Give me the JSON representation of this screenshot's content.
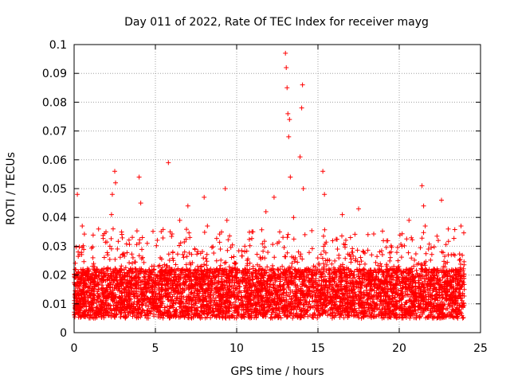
{
  "chart_data": {
    "type": "scatter",
    "title": "Day 011 of 2022, Rate Of TEC Index for receiver mayg",
    "xlabel": "GPS time / hours",
    "ylabel": "ROTI / TECUs",
    "xlim": [
      0,
      25
    ],
    "ylim": [
      0,
      0.1
    ],
    "x_ticks": [
      0,
      5,
      10,
      15,
      20,
      25
    ],
    "x_tick_labels": [
      "0",
      "5",
      "10",
      "15",
      "20",
      "25"
    ],
    "y_ticks": [
      0,
      0.01,
      0.02,
      0.03,
      0.04,
      0.05,
      0.06,
      0.07,
      0.08,
      0.09,
      0.1
    ],
    "y_tick_labels": [
      "0",
      "0.01",
      "0.02",
      "0.03",
      "0.04",
      "0.05",
      "0.06",
      "0.07",
      "0.08",
      "0.09",
      "0.1"
    ],
    "grid": true,
    "marker": "+",
    "series_color": "#ff0000",
    "series": [
      {
        "name": "ROTI",
        "x": [
          0.1,
          0.15,
          0.2,
          0.25,
          0.3,
          0.5,
          0.55,
          0.6,
          0.9,
          1.2,
          1.5,
          1.8,
          2.2,
          2.3,
          2.35,
          2.4,
          2.5,
          2.55,
          2.6,
          2.8,
          3.0,
          3.3,
          3.5,
          3.8,
          4.0,
          4.1,
          4.2,
          4.3,
          4.5,
          4.8,
          5.0,
          5.3,
          5.5,
          5.8,
          6.0,
          6.2,
          6.5,
          6.8,
          7.0,
          7.3,
          7.6,
          7.9,
          8.0,
          8.2,
          8.5,
          8.8,
          9.0,
          9.3,
          9.4,
          9.6,
          9.9,
          10.2,
          10.5,
          10.8,
          11.0,
          11.3,
          11.6,
          11.8,
          12.0,
          12.3,
          12.5,
          12.8,
          13.0,
          13.05,
          13.1,
          13.15,
          13.2,
          13.25,
          13.3,
          13.5,
          13.8,
          13.9,
          14.0,
          14.05,
          14.1,
          14.2,
          14.5,
          14.8,
          15.0,
          15.3,
          15.4,
          15.6,
          15.9,
          16.2,
          16.5,
          16.8,
          17.0,
          17.3,
          17.5,
          17.8,
          18.0,
          18.3,
          18.6,
          18.9,
          19.2,
          19.5,
          19.8,
          20.1,
          20.4,
          20.6,
          20.9,
          21.2,
          21.4,
          21.5,
          21.6,
          21.8,
          22.1,
          22.4,
          22.6,
          22.9,
          23.2,
          23.5,
          23.8,
          24.0
        ],
        "y": [
          0.012,
          0.02,
          0.048,
          0.028,
          0.016,
          0.037,
          0.022,
          0.013,
          0.018,
          0.024,
          0.015,
          0.021,
          0.03,
          0.041,
          0.048,
          0.036,
          0.056,
          0.052,
          0.02,
          0.016,
          0.027,
          0.014,
          0.022,
          0.018,
          0.054,
          0.045,
          0.033,
          0.021,
          0.031,
          0.015,
          0.019,
          0.026,
          0.013,
          0.059,
          0.022,
          0.017,
          0.039,
          0.028,
          0.044,
          0.016,
          0.023,
          0.019,
          0.047,
          0.037,
          0.021,
          0.015,
          0.029,
          0.05,
          0.039,
          0.018,
          0.024,
          0.016,
          0.03,
          0.022,
          0.035,
          0.014,
          0.026,
          0.042,
          0.019,
          0.047,
          0.031,
          0.023,
          0.097,
          0.092,
          0.085,
          0.076,
          0.068,
          0.074,
          0.054,
          0.04,
          0.028,
          0.061,
          0.078,
          0.086,
          0.05,
          0.034,
          0.021,
          0.018,
          0.015,
          0.056,
          0.048,
          0.025,
          0.019,
          0.029,
          0.041,
          0.017,
          0.033,
          0.025,
          0.043,
          0.02,
          0.016,
          0.027,
          0.014,
          0.023,
          0.018,
          0.028,
          0.015,
          0.021,
          0.019,
          0.039,
          0.013,
          0.024,
          0.051,
          0.044,
          0.037,
          0.029,
          0.02,
          0.032,
          0.046,
          0.017,
          0.027,
          0.02,
          0.037,
          0.015
        ]
      }
    ],
    "dense_band": {
      "description": "Dense continuous scatter of points concentrated between about 0.005 and 0.030 TECU over 0–24 h",
      "x_range": [
        0,
        24
      ],
      "y_core_range": [
        0.005,
        0.028
      ],
      "y_spread_max": 0.036
    }
  }
}
